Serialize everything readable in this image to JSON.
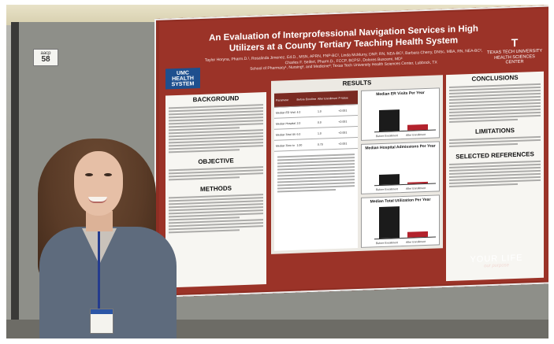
{
  "booth_tag": {
    "code": "aacp",
    "number": "58"
  },
  "poster": {
    "title_line1": "An Evaluation of Interprofessional Navigation Services in High",
    "title_line2": "Utilizers at a County Tertiary Teaching Health System",
    "authors": "Taylor Horyna, Pharm.D.¹, Rosalinda Jimenez, Ed.D., MSN, APRN, FNP-BC², Linda McMurry, DNP, RN, NEA-BC², Barbara Cherry, DNSc, MBA, RN, NEA-BC², Charles F. Seifert, Pharm.D., FCCP, BCPS¹, Dolores Buscemi, MD³",
    "affiliation": "School of Pharmacy¹, Nursing², and Medicine³; Texas Tech University Health Sciences Center, Lubbock, TX",
    "logo_left": "UMC HEALTH SYSTEM",
    "logo_right_mark": "T",
    "logo_right_text": "TEXAS TECH UNIVERSITY HEALTH SCIENCES CENTER",
    "sections": {
      "background": "BACKGROUND",
      "objective": "OBJECTIVE",
      "methods": "METHODS",
      "results": "RESULTS",
      "conclusions": "CONCLUSIONS",
      "limitations": "LIMITATIONS",
      "references": "SELECTED REFERENCES"
    },
    "table_header": [
      "Parameter",
      "Before Enrollment",
      "After Enrollment",
      "P-Value"
    ],
    "table_rows": [
      [
        "Median ED Visits",
        "4.0",
        "1.0",
        "<0.001"
      ],
      [
        "Median Hospital Admissions",
        "2.0",
        "0.0",
        "<0.001"
      ],
      [
        "Median Total Utilization",
        "6.0",
        "1.0",
        "<0.001"
      ],
      [
        "Median Time to First Follow-up",
        "1.00",
        "0.70",
        "<0.001"
      ]
    ],
    "charts": [
      {
        "title": "Median ER Visits Per Year",
        "before_label": "Before Enrollment",
        "after_label": "After Enrollment",
        "before": 4.0,
        "after": 1.0
      },
      {
        "title": "Median Hospital Admissions Per Year",
        "before_label": "Before Enrollment",
        "after_label": "After Enrollment",
        "before": 2.0,
        "after": 0.0
      },
      {
        "title": "Median Total Utilization Per Year",
        "before_label": "Before Enrollment",
        "after_label": "After Enrollment",
        "before": 6.0,
        "after": 1.0
      }
    ],
    "your_life": "YOUR LIFE",
    "your_life_sub": "our purpose"
  }
}
